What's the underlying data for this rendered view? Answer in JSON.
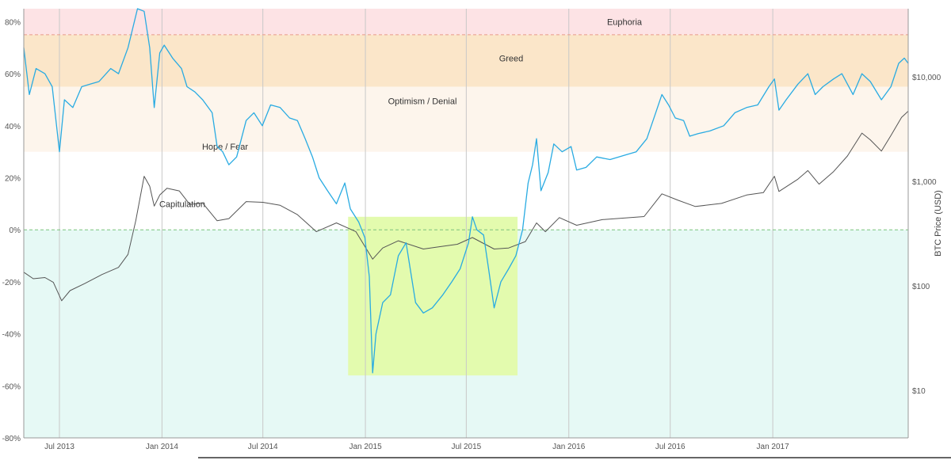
{
  "colors": {
    "euphoria_zone": "#fde3e5",
    "greed_zone": "#fbe6c9",
    "optimism_zone": "#fdf5ec",
    "capitulation_zone": "#e6f9f5",
    "highlight_box": "#e3fbae",
    "nupl_line": "#29abe2",
    "price_line": "#555555",
    "grid": "#c8c8c8",
    "threshold_line": "#e89a8a",
    "zero_line": "#7cc27c"
  },
  "chart_data": {
    "type": "line",
    "left_axis": {
      "ylim": [
        -80,
        85
      ],
      "ticks": [
        "80%",
        "60%",
        "40%",
        "20%",
        "0%",
        "-20%",
        "-40%",
        "-60%",
        "-80%"
      ],
      "tick_values": [
        80,
        60,
        40,
        20,
        0,
        -20,
        -40,
        -60,
        -80
      ]
    },
    "right_axis": {
      "label": "BTC Price (USD)",
      "scale": "log",
      "ylim": [
        3.5,
        45000
      ],
      "ticks": [
        "$10,000",
        "$1,000",
        "$100",
        "$10"
      ],
      "tick_values": [
        10000,
        1000,
        100,
        10
      ]
    },
    "x_axis": {
      "type": "date",
      "range": [
        "2013-04-28",
        "2017-09-01"
      ],
      "ticks": [
        "Jul 2013",
        "Jan 2014",
        "Jul 2014",
        "Jan 2015",
        "Jul 2015",
        "Jan 2016",
        "Jul 2016",
        "Jan 2017"
      ],
      "tick_dates": [
        "2013-07-01",
        "2014-01-01",
        "2014-07-01",
        "2015-01-01",
        "2015-07-01",
        "2016-01-01",
        "2016-07-01",
        "2017-01-01"
      ]
    },
    "zones": [
      {
        "name": "Euphoria",
        "from": 75,
        "to": 85
      },
      {
        "name": "Greed",
        "from": 55,
        "to": 75
      },
      {
        "name": "Optimism / Denial",
        "from": 30,
        "to": 55
      },
      {
        "name": "Hope / Fear",
        "from": 0,
        "to": 30
      },
      {
        "name": "Capitulation",
        "from": -80,
        "to": 0
      }
    ],
    "highlight": {
      "x_from": "2014-12-01",
      "x_to": "2015-10-01",
      "y_from": -56,
      "y_to": 5
    },
    "series": [
      {
        "name": "",
        "axis": "left",
        "points": [
          [
            "2013-04-28",
            70
          ],
          [
            "2013-05-08",
            52
          ],
          [
            "2013-05-20",
            62
          ],
          [
            "2013-06-05",
            60
          ],
          [
            "2013-06-18",
            55
          ],
          [
            "2013-07-01",
            30
          ],
          [
            "2013-07-10",
            50
          ],
          [
            "2013-07-25",
            47
          ],
          [
            "2013-08-10",
            55
          ],
          [
            "2013-08-25",
            56
          ],
          [
            "2013-09-10",
            57
          ],
          [
            "2013-10-01",
            62
          ],
          [
            "2013-10-15",
            60
          ],
          [
            "2013-11-01",
            70
          ],
          [
            "2013-11-18",
            85
          ],
          [
            "2013-11-30",
            84
          ],
          [
            "2013-12-10",
            70
          ],
          [
            "2013-12-18",
            47
          ],
          [
            "2013-12-28",
            68
          ],
          [
            "2014-01-05",
            71
          ],
          [
            "2014-01-20",
            66
          ],
          [
            "2014-02-05",
            62
          ],
          [
            "2014-02-15",
            55
          ],
          [
            "2014-03-01",
            53
          ],
          [
            "2014-03-15",
            50
          ],
          [
            "2014-04-01",
            45
          ],
          [
            "2014-04-10",
            32
          ],
          [
            "2014-04-20",
            30
          ],
          [
            "2014-05-01",
            25
          ],
          [
            "2014-05-15",
            28
          ],
          [
            "2014-06-01",
            42
          ],
          [
            "2014-06-15",
            45
          ],
          [
            "2014-06-30",
            40
          ],
          [
            "2014-07-15",
            48
          ],
          [
            "2014-08-01",
            47
          ],
          [
            "2014-08-18",
            43
          ],
          [
            "2014-09-01",
            42
          ],
          [
            "2014-09-15",
            35
          ],
          [
            "2014-09-28",
            28
          ],
          [
            "2014-10-10",
            20
          ],
          [
            "2014-10-25",
            15
          ],
          [
            "2014-11-10",
            10
          ],
          [
            "2014-11-25",
            18
          ],
          [
            "2014-12-05",
            8
          ],
          [
            "2014-12-20",
            3
          ],
          [
            "2014-12-31",
            -3
          ],
          [
            "2015-01-08",
            -18
          ],
          [
            "2015-01-14",
            -55
          ],
          [
            "2015-01-20",
            -40
          ],
          [
            "2015-02-01",
            -28
          ],
          [
            "2015-02-15",
            -25
          ],
          [
            "2015-03-01",
            -10
          ],
          [
            "2015-03-15",
            -5
          ],
          [
            "2015-04-01",
            -28
          ],
          [
            "2015-04-15",
            -32
          ],
          [
            "2015-05-01",
            -30
          ],
          [
            "2015-05-20",
            -25
          ],
          [
            "2015-06-05",
            -20
          ],
          [
            "2015-06-20",
            -15
          ],
          [
            "2015-07-05",
            -5
          ],
          [
            "2015-07-12",
            5
          ],
          [
            "2015-07-20",
            0
          ],
          [
            "2015-08-01",
            -2
          ],
          [
            "2015-08-10",
            -15
          ],
          [
            "2015-08-20",
            -30
          ],
          [
            "2015-09-01",
            -20
          ],
          [
            "2015-09-15",
            -15
          ],
          [
            "2015-09-28",
            -10
          ],
          [
            "2015-10-10",
            0
          ],
          [
            "2015-10-20",
            18
          ],
          [
            "2015-10-28",
            25
          ],
          [
            "2015-11-04",
            35
          ],
          [
            "2015-11-12",
            15
          ],
          [
            "2015-11-25",
            22
          ],
          [
            "2015-12-05",
            33
          ],
          [
            "2015-12-20",
            30
          ],
          [
            "2016-01-05",
            32
          ],
          [
            "2016-01-15",
            23
          ],
          [
            "2016-02-01",
            24
          ],
          [
            "2016-02-20",
            28
          ],
          [
            "2016-03-15",
            27
          ],
          [
            "2016-04-15",
            29
          ],
          [
            "2016-05-01",
            30
          ],
          [
            "2016-05-20",
            35
          ],
          [
            "2016-06-05",
            45
          ],
          [
            "2016-06-16",
            52
          ],
          [
            "2016-06-28",
            48
          ],
          [
            "2016-07-10",
            43
          ],
          [
            "2016-07-25",
            42
          ],
          [
            "2016-08-05",
            36
          ],
          [
            "2016-08-20",
            37
          ],
          [
            "2016-09-10",
            38
          ],
          [
            "2016-10-05",
            40
          ],
          [
            "2016-10-25",
            45
          ],
          [
            "2016-11-15",
            47
          ],
          [
            "2016-12-05",
            48
          ],
          [
            "2016-12-25",
            55
          ],
          [
            "2017-01-04",
            58
          ],
          [
            "2017-01-12",
            46
          ],
          [
            "2017-01-25",
            50
          ],
          [
            "2017-02-15",
            56
          ],
          [
            "2017-03-05",
            60
          ],
          [
            "2017-03-18",
            52
          ],
          [
            "2017-04-01",
            55
          ],
          [
            "2017-04-20",
            58
          ],
          [
            "2017-05-05",
            60
          ],
          [
            "2017-05-25",
            52
          ],
          [
            "2017-06-10",
            60
          ],
          [
            "2017-06-25",
            57
          ],
          [
            "2017-07-15",
            50
          ],
          [
            "2017-08-01",
            55
          ],
          [
            "2017-08-15",
            64
          ],
          [
            "2017-08-25",
            66
          ],
          [
            "2017-09-01",
            64
          ]
        ]
      },
      {
        "name": "",
        "axis": "right",
        "points": [
          [
            "2013-04-28",
            135
          ],
          [
            "2013-05-15",
            117
          ],
          [
            "2013-06-05",
            120
          ],
          [
            "2013-06-20",
            108
          ],
          [
            "2013-07-05",
            72
          ],
          [
            "2013-07-20",
            90
          ],
          [
            "2013-08-15",
            105
          ],
          [
            "2013-09-15",
            128
          ],
          [
            "2013-10-15",
            150
          ],
          [
            "2013-11-01",
            200
          ],
          [
            "2013-11-15",
            420
          ],
          [
            "2013-11-30",
            1120
          ],
          [
            "2013-12-10",
            900
          ],
          [
            "2013-12-18",
            580
          ],
          [
            "2013-12-28",
            740
          ],
          [
            "2014-01-10",
            860
          ],
          [
            "2014-02-01",
            810
          ],
          [
            "2014-02-20",
            600
          ],
          [
            "2014-03-15",
            620
          ],
          [
            "2014-04-10",
            420
          ],
          [
            "2014-05-01",
            440
          ],
          [
            "2014-06-01",
            640
          ],
          [
            "2014-07-01",
            630
          ],
          [
            "2014-08-01",
            590
          ],
          [
            "2014-09-01",
            480
          ],
          [
            "2014-10-05",
            330
          ],
          [
            "2014-11-10",
            400
          ],
          [
            "2014-12-15",
            330
          ],
          [
            "2015-01-14",
            180
          ],
          [
            "2015-02-01",
            230
          ],
          [
            "2015-03-01",
            270
          ],
          [
            "2015-04-15",
            225
          ],
          [
            "2015-05-15",
            237
          ],
          [
            "2015-06-15",
            250
          ],
          [
            "2015-07-12",
            290
          ],
          [
            "2015-08-20",
            225
          ],
          [
            "2015-09-15",
            230
          ],
          [
            "2015-10-15",
            265
          ],
          [
            "2015-11-04",
            400
          ],
          [
            "2015-11-20",
            330
          ],
          [
            "2015-12-15",
            450
          ],
          [
            "2016-01-15",
            380
          ],
          [
            "2016-03-01",
            430
          ],
          [
            "2016-05-15",
            460
          ],
          [
            "2016-06-16",
            760
          ],
          [
            "2016-07-15",
            660
          ],
          [
            "2016-08-15",
            575
          ],
          [
            "2016-10-01",
            615
          ],
          [
            "2016-11-15",
            740
          ],
          [
            "2016-12-15",
            780
          ],
          [
            "2017-01-04",
            1120
          ],
          [
            "2017-01-12",
            800
          ],
          [
            "2017-02-15",
            1050
          ],
          [
            "2017-03-05",
            1270
          ],
          [
            "2017-03-25",
            940
          ],
          [
            "2017-04-20",
            1240
          ],
          [
            "2017-05-15",
            1750
          ],
          [
            "2017-06-10",
            2900
          ],
          [
            "2017-06-25",
            2500
          ],
          [
            "2017-07-15",
            1950
          ],
          [
            "2017-08-01",
            2750
          ],
          [
            "2017-08-20",
            4100
          ],
          [
            "2017-09-01",
            4700
          ]
        ]
      }
    ]
  }
}
